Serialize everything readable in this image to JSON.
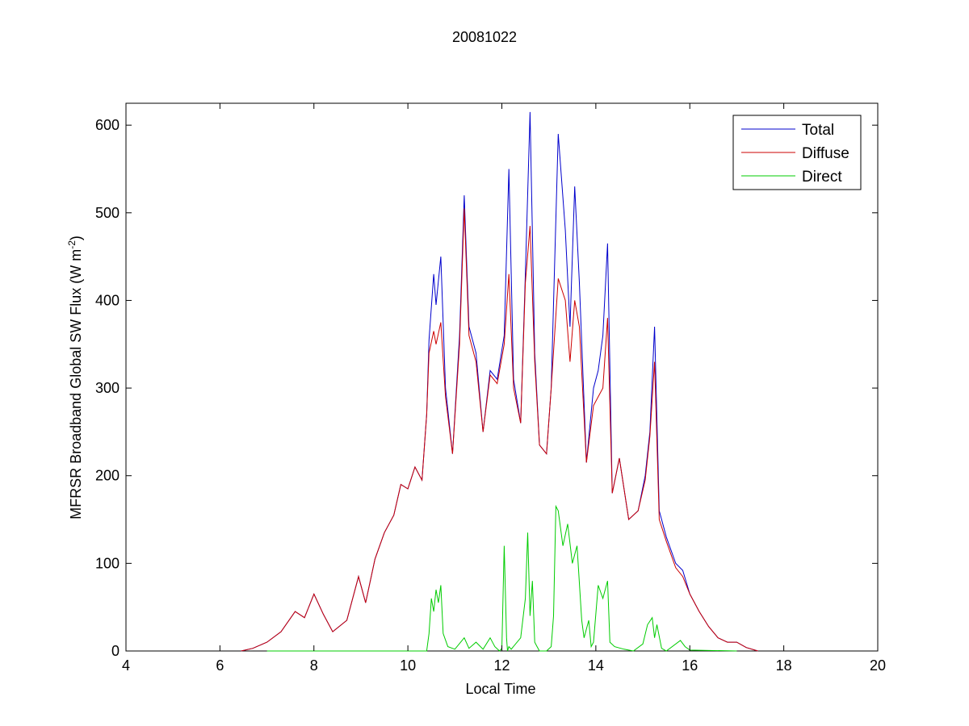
{
  "chart_data": {
    "type": "line",
    "title": "20081022",
    "xlabel": "Local Time",
    "ylabel_main": "MFRSR Broadband Global SW Flux (W m",
    "ylabel_sup": "-2",
    "ylabel_end": ")",
    "xlim": [
      4,
      20
    ],
    "ylim": [
      0,
      625
    ],
    "xticks": [
      "4",
      "6",
      "8",
      "10",
      "12",
      "14",
      "16",
      "18",
      "20"
    ],
    "yticks": [
      "0",
      "100",
      "200",
      "300",
      "400",
      "500",
      "600"
    ],
    "legend": {
      "position": "top-right"
    },
    "grid": false,
    "series": [
      {
        "name": "Total",
        "color": "#0000cc",
        "x": [
          6.45,
          6.7,
          7.0,
          7.3,
          7.6,
          7.8,
          8.0,
          8.2,
          8.4,
          8.7,
          8.95,
          9.1,
          9.3,
          9.5,
          9.7,
          9.85,
          10.0,
          10.15,
          10.3,
          10.4,
          10.45,
          10.55,
          10.6,
          10.7,
          10.8,
          10.95,
          11.1,
          11.2,
          11.3,
          11.45,
          11.6,
          11.75,
          11.9,
          12.05,
          12.15,
          12.25,
          12.4,
          12.5,
          12.6,
          12.7,
          12.8,
          12.95,
          13.05,
          13.2,
          13.35,
          13.45,
          13.55,
          13.65,
          13.8,
          13.95,
          14.05,
          14.15,
          14.25,
          14.35,
          14.5,
          14.7,
          14.9,
          15.05,
          15.15,
          15.25,
          15.35,
          15.5,
          15.7,
          15.85,
          16.0,
          16.2,
          16.4,
          16.6,
          16.8,
          17.0,
          17.2,
          17.45
        ],
        "y": [
          0,
          3,
          10,
          22,
          45,
          38,
          65,
          42,
          22,
          35,
          85,
          55,
          105,
          135,
          155,
          190,
          185,
          210,
          195,
          270,
          355,
          430,
          395,
          450,
          300,
          225,
          360,
          520,
          370,
          340,
          250,
          320,
          310,
          360,
          550,
          310,
          260,
          430,
          615,
          340,
          235,
          225,
          300,
          590,
          480,
          370,
          530,
          420,
          215,
          300,
          320,
          360,
          465,
          180,
          220,
          150,
          160,
          200,
          250,
          370,
          160,
          130,
          100,
          92,
          65,
          45,
          28,
          15,
          10,
          10,
          4,
          0
        ]
      },
      {
        "name": "Diffuse",
        "color": "#cc0000",
        "x": [
          6.45,
          6.7,
          7.0,
          7.3,
          7.6,
          7.8,
          8.0,
          8.2,
          8.4,
          8.7,
          8.95,
          9.1,
          9.3,
          9.5,
          9.7,
          9.85,
          10.0,
          10.15,
          10.3,
          10.4,
          10.45,
          10.55,
          10.6,
          10.7,
          10.8,
          10.95,
          11.1,
          11.2,
          11.3,
          11.45,
          11.6,
          11.75,
          11.9,
          12.05,
          12.15,
          12.25,
          12.4,
          12.5,
          12.6,
          12.7,
          12.8,
          12.95,
          13.05,
          13.2,
          13.35,
          13.45,
          13.55,
          13.65,
          13.8,
          13.95,
          14.05,
          14.15,
          14.25,
          14.35,
          14.5,
          14.7,
          14.9,
          15.05,
          15.15,
          15.25,
          15.35,
          15.5,
          15.7,
          15.85,
          16.0,
          16.2,
          16.4,
          16.6,
          16.8,
          17.0,
          17.2,
          17.45
        ],
        "y": [
          0,
          3,
          10,
          22,
          45,
          38,
          65,
          42,
          22,
          35,
          85,
          55,
          105,
          135,
          155,
          190,
          185,
          210,
          195,
          270,
          340,
          365,
          350,
          375,
          290,
          225,
          350,
          505,
          360,
          330,
          250,
          315,
          305,
          350,
          430,
          300,
          260,
          420,
          485,
          330,
          235,
          225,
          300,
          425,
          400,
          330,
          400,
          370,
          215,
          280,
          290,
          300,
          380,
          180,
          220,
          150,
          160,
          195,
          245,
          330,
          150,
          125,
          95,
          85,
          65,
          45,
          28,
          15,
          10,
          10,
          4,
          0
        ]
      },
      {
        "name": "Direct",
        "color": "#00cc00",
        "x": [
          7.0,
          10.4,
          10.45,
          10.5,
          10.55,
          10.6,
          10.65,
          10.7,
          10.75,
          10.85,
          11.0,
          11.2,
          11.3,
          11.45,
          11.6,
          11.75,
          11.85,
          11.95,
          12.0,
          12.05,
          12.1,
          12.12,
          12.15,
          12.2,
          12.4,
          12.5,
          12.55,
          12.6,
          12.65,
          12.7,
          12.75,
          12.8,
          12.95,
          13.05,
          13.1,
          13.15,
          13.2,
          13.3,
          13.4,
          13.5,
          13.6,
          13.7,
          13.75,
          13.85,
          13.9,
          13.95,
          14.05,
          14.15,
          14.25,
          14.3,
          14.4,
          14.6,
          14.8,
          15.0,
          15.1,
          15.2,
          15.25,
          15.3,
          15.4,
          15.5,
          15.8,
          15.9,
          16.0,
          17.0
        ],
        "y": [
          0,
          0,
          20,
          60,
          45,
          70,
          55,
          75,
          20,
          5,
          2,
          15,
          3,
          10,
          2,
          15,
          5,
          0,
          3,
          120,
          15,
          0,
          5,
          2,
          15,
          60,
          135,
          40,
          80,
          10,
          5,
          0,
          0,
          5,
          40,
          165,
          160,
          120,
          145,
          100,
          120,
          35,
          15,
          35,
          5,
          10,
          75,
          60,
          80,
          10,
          5,
          2,
          0,
          8,
          30,
          38,
          15,
          30,
          3,
          0,
          12,
          5,
          1,
          0
        ]
      }
    ]
  }
}
